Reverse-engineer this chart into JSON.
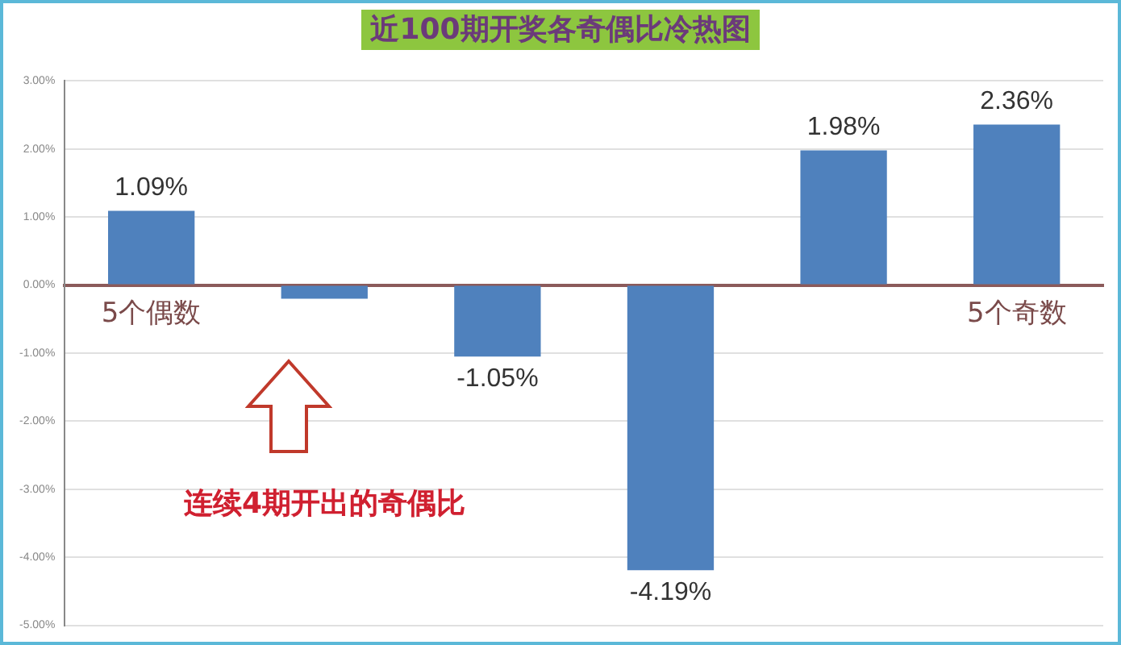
{
  "chart_data": {
    "type": "bar",
    "title": "近100期开奖各奇偶比冷热图",
    "categories": [
      "5个偶数",
      null,
      null,
      null,
      null,
      "5个奇数"
    ],
    "values": [
      1.09,
      -0.2,
      -1.05,
      -4.19,
      1.98,
      2.36
    ],
    "value_labels": [
      "1.09%",
      null,
      "-1.05%",
      "-4.19%",
      "1.98%",
      "2.36%"
    ],
    "color": "#4f81bd",
    "ylim": [
      -5,
      3
    ],
    "yticks": [
      {
        "value": -5,
        "label": "-5.00%"
      },
      {
        "value": -4,
        "label": "-4.00%"
      },
      {
        "value": -3,
        "label": "-3.00%"
      },
      {
        "value": -2,
        "label": "-2.00%"
      },
      {
        "value": -1,
        "label": "-1.00%"
      },
      {
        "value": 0,
        "label": "0.00%"
      },
      {
        "value": 1,
        "label": "1.00%"
      },
      {
        "value": 2,
        "label": "2.00%"
      },
      {
        "value": 3,
        "label": "3.00%"
      }
    ],
    "grid": "y",
    "annotations": [
      "连续4期开出的奇偶比"
    ]
  }
}
